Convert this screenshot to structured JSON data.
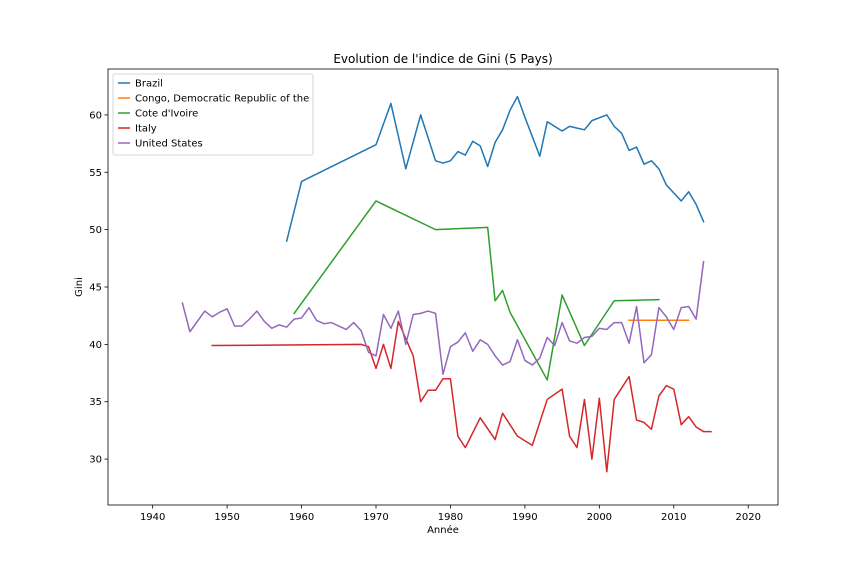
{
  "chart_data": {
    "type": "line",
    "title": "Evolution de l'indice de Gini (5 Pays)",
    "xlabel": "Année",
    "ylabel": "Gini",
    "xlim": [
      1934,
      2024
    ],
    "ylim": [
      26,
      64
    ],
    "xticks": [
      1940,
      1950,
      1960,
      1970,
      1980,
      1990,
      2000,
      2010,
      2020
    ],
    "yticks": [
      30,
      35,
      40,
      45,
      50,
      55,
      60
    ],
    "grid": false,
    "legend_position": "top-left",
    "series": [
      {
        "name": "Brazil",
        "color": "#1f77b4",
        "x": [
          1958,
          1960,
          1970,
          1972,
          1974,
          1976,
          1978,
          1979,
          1980,
          1981,
          1982,
          1983,
          1984,
          1985,
          1986,
          1987,
          1988,
          1989,
          1990,
          1992,
          1993,
          1995,
          1996,
          1998,
          1999,
          2001,
          2002,
          2003,
          2004,
          2005,
          2006,
          2007,
          2008,
          2009,
          2011,
          2012,
          2013,
          2014
        ],
        "y": [
          49.0,
          54.2,
          57.4,
          61.0,
          55.3,
          60.0,
          56.0,
          55.8,
          56.0,
          56.8,
          56.5,
          57.7,
          57.3,
          55.5,
          57.6,
          58.7,
          60.4,
          61.6,
          59.8,
          56.4,
          59.4,
          58.6,
          59.0,
          58.7,
          59.5,
          60.0,
          59.0,
          58.4,
          56.9,
          57.2,
          55.7,
          56.0,
          55.3,
          53.9,
          52.5,
          53.3,
          52.2,
          50.7
        ]
      },
      {
        "name": "Congo, Democratic Republic of the",
        "color": "#ff7f0e",
        "x": [
          2004,
          2012
        ],
        "y": [
          42.1,
          42.1
        ]
      },
      {
        "name": "Cote d'Ivoire",
        "color": "#2ca02c",
        "x": [
          1959,
          1970,
          1978,
          1985,
          1986,
          1987,
          1988,
          1993,
          1995,
          1998,
          2002,
          2008
        ],
        "y": [
          42.7,
          52.5,
          50.0,
          50.2,
          43.8,
          44.7,
          42.8,
          36.9,
          44.3,
          39.9,
          43.8,
          43.9
        ]
      },
      {
        "name": "Italy",
        "color": "#d62728",
        "x": [
          1948,
          1968,
          1969,
          1970,
          1971,
          1972,
          1973,
          1975,
          1976,
          1977,
          1978,
          1979,
          1980,
          1981,
          1982,
          1984,
          1986,
          1987,
          1989,
          1991,
          1993,
          1995,
          1996,
          1997,
          1998,
          1999,
          2000,
          2001,
          2002,
          2004,
          2005,
          2006,
          2007,
          2008,
          2009,
          2010,
          2011,
          2012,
          2013,
          2014,
          2015
        ],
        "y": [
          39.9,
          40.0,
          39.8,
          37.9,
          40.0,
          37.9,
          42.0,
          39.0,
          35.0,
          36.0,
          36.0,
          37.0,
          37.0,
          32.0,
          31.0,
          33.6,
          31.7,
          34.0,
          32.0,
          31.2,
          35.2,
          36.1,
          32.0,
          31.0,
          35.2,
          30.0,
          35.3,
          28.9,
          35.2,
          37.2,
          33.4,
          33.2,
          32.6,
          35.5,
          36.4,
          36.1,
          33.0,
          33.7,
          32.8,
          32.4,
          32.4
        ]
      },
      {
        "name": "United States",
        "color": "#9467bd",
        "x": [
          1944,
          1945,
          1947,
          1948,
          1949,
          1950,
          1951,
          1952,
          1953,
          1954,
          1955,
          1956,
          1957,
          1958,
          1959,
          1960,
          1961,
          1962,
          1963,
          1964,
          1965,
          1966,
          1967,
          1968,
          1969,
          1970,
          1971,
          1972,
          1973,
          1974,
          1975,
          1976,
          1977,
          1978,
          1979,
          1980,
          1981,
          1982,
          1983,
          1984,
          1985,
          1986,
          1987,
          1988,
          1989,
          1990,
          1991,
          1992,
          1993,
          1994,
          1995,
          1996,
          1997,
          1998,
          1999,
          2000,
          2001,
          2002,
          2003,
          2004,
          2005,
          2006,
          2007,
          2008,
          2009,
          2010,
          2011,
          2012,
          2013,
          2014
        ],
        "y": [
          43.6,
          41.1,
          42.9,
          42.4,
          42.8,
          43.1,
          41.6,
          41.6,
          42.2,
          42.9,
          42.0,
          41.4,
          41.7,
          41.5,
          42.2,
          42.3,
          43.2,
          42.1,
          41.8,
          41.9,
          41.6,
          41.3,
          41.9,
          41.2,
          39.3,
          39.0,
          42.6,
          41.4,
          42.9,
          40.0,
          42.6,
          42.7,
          42.9,
          42.7,
          37.4,
          39.8,
          40.2,
          41.0,
          39.4,
          40.4,
          40.0,
          39.0,
          38.2,
          38.5,
          40.4,
          38.6,
          38.2,
          38.8,
          40.6,
          39.9,
          41.9,
          40.3,
          40.1,
          40.6,
          40.7,
          41.4,
          41.3,
          41.9,
          41.9,
          40.1,
          43.3,
          38.4,
          39.1,
          43.2,
          42.4,
          41.3,
          43.2,
          43.3,
          42.2,
          47.2
        ]
      }
    ]
  }
}
